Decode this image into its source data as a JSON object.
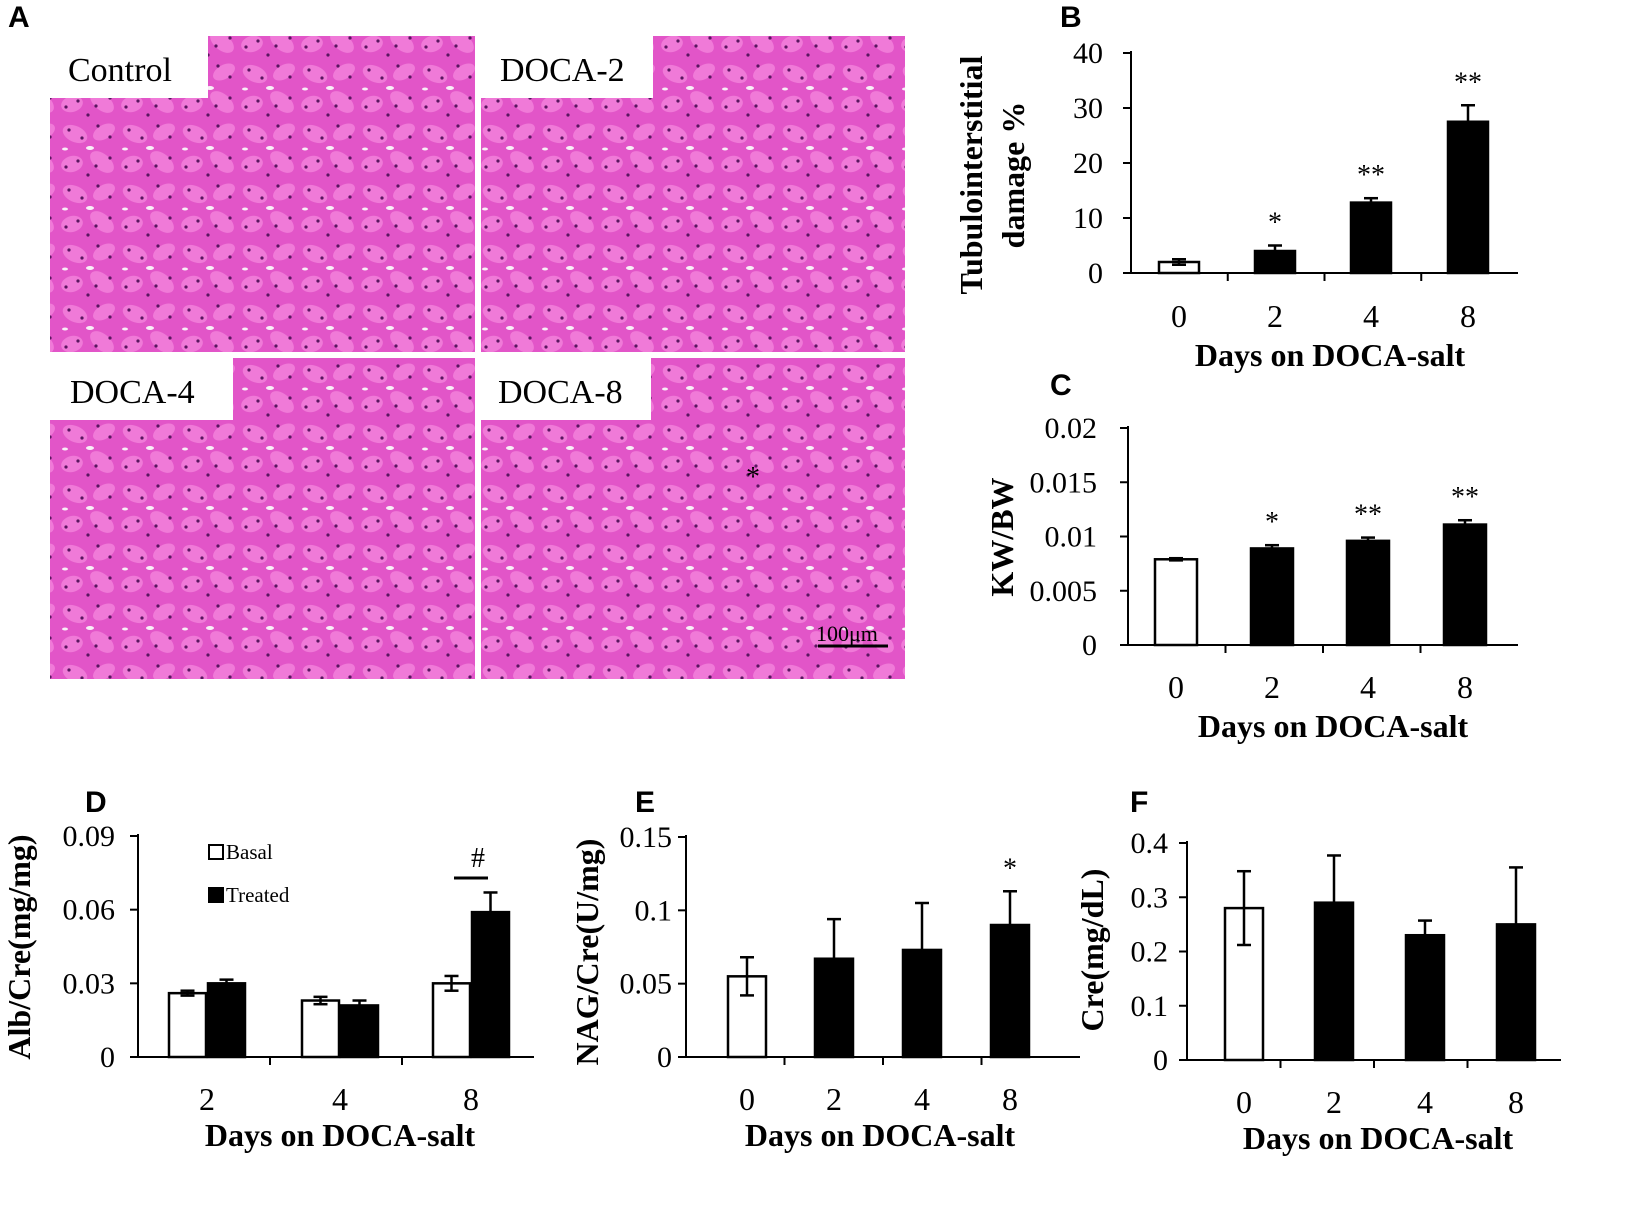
{
  "panel_a": {
    "letter": "A",
    "images": [
      "Control",
      "DOCA-2",
      "DOCA-4",
      "DOCA-8"
    ],
    "scale_bar": "100μm",
    "image_marker": "*",
    "stain_colors": {
      "base": "#e255c8",
      "tubule": "#f07ad8",
      "lumen": "#f8eef6",
      "nuclei": "#5a1660"
    }
  },
  "chart_data": [
    {
      "panel": "B",
      "type": "bar",
      "categories": [
        "0",
        "2",
        "4",
        "8"
      ],
      "values": [
        2,
        4,
        12.8,
        27.5
      ],
      "errors": [
        0.5,
        1.0,
        0.8,
        3.0
      ],
      "fills": [
        "white",
        "black",
        "black",
        "black"
      ],
      "significance": [
        "",
        "*",
        "**",
        "**"
      ],
      "ylabel_lines": [
        "Tubulointerstitial",
        "damage %"
      ],
      "xlabel": "Days on DOCA-salt",
      "ylim": [
        0,
        40
      ],
      "yticks": [
        "0",
        "10",
        "20",
        "30",
        "40"
      ]
    },
    {
      "panel": "C",
      "type": "bar",
      "categories": [
        "0",
        "2",
        "4",
        "8"
      ],
      "values": [
        0.0079,
        0.0089,
        0.0096,
        0.0111
      ],
      "errors": [
        0.0001,
        0.0003,
        0.0003,
        0.0004
      ],
      "fills": [
        "white",
        "black",
        "black",
        "black"
      ],
      "significance": [
        "",
        "*",
        "**",
        "**"
      ],
      "ylabel_lines": [
        "KW/BW"
      ],
      "xlabel": "Days on DOCA-salt",
      "ylim": [
        0,
        0.02
      ],
      "yticks": [
        "0",
        "0.005",
        "0.01",
        "0.015",
        "0.02"
      ]
    },
    {
      "panel": "D",
      "type": "bar",
      "categories": [
        "2",
        "4",
        "8"
      ],
      "series": [
        {
          "name": "Basal",
          "values": [
            0.026,
            0.023,
            0.03
          ],
          "errors": [
            0.001,
            0.0015,
            0.003
          ],
          "fill": "white"
        },
        {
          "name": "Treated",
          "values": [
            0.03,
            0.021,
            0.059
          ],
          "errors": [
            0.0015,
            0.002,
            0.008
          ],
          "fill": "black"
        }
      ],
      "group_annotation": {
        "category": "8",
        "text": "#"
      },
      "legend_position": "top-left",
      "ylabel_lines": [
        "Alb/Cre(mg/mg)"
      ],
      "xlabel": "Days on DOCA-salt",
      "ylim": [
        0,
        0.09
      ],
      "yticks": [
        "0",
        "0.03",
        "0.06",
        "0.09"
      ]
    },
    {
      "panel": "E",
      "type": "bar",
      "categories": [
        "0",
        "2",
        "4",
        "8"
      ],
      "values": [
        0.055,
        0.067,
        0.073,
        0.09
      ],
      "errors": [
        0.013,
        0.027,
        0.032,
        0.023
      ],
      "fills": [
        "white",
        "black",
        "black",
        "black"
      ],
      "significance": [
        "",
        "",
        "",
        "*"
      ],
      "ylabel_lines": [
        "NAG/Cre(U/mg)"
      ],
      "xlabel": "Days on DOCA-salt",
      "ylim": [
        0,
        0.15
      ],
      "yticks": [
        "0",
        "0.05",
        "0.1",
        "0.15"
      ]
    },
    {
      "panel": "F",
      "type": "bar",
      "categories": [
        "0",
        "2",
        "4",
        "8"
      ],
      "values": [
        0.28,
        0.29,
        0.23,
        0.25
      ],
      "errors": [
        0.068,
        0.087,
        0.027,
        0.105
      ],
      "fills": [
        "white",
        "black",
        "black",
        "black"
      ],
      "significance": [
        "",
        "",
        "",
        ""
      ],
      "ylabel_lines": [
        "Cre(mg/dL)"
      ],
      "xlabel": "Days on DOCA-salt",
      "ylim": [
        0,
        0.4
      ],
      "yticks": [
        "0",
        "0.1",
        "0.2",
        "0.3",
        "0.4"
      ]
    }
  ]
}
